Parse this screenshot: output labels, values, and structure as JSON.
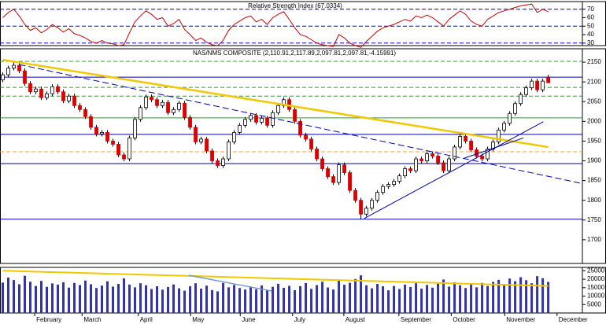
{
  "chart_data": [
    {
      "type": "line",
      "title": "Relative Strength Index (67.0334)",
      "color": "#cc0000",
      "values": [
        60,
        66,
        70,
        62,
        52,
        45,
        48,
        42,
        46,
        52,
        48,
        43,
        47,
        41,
        39,
        36,
        32,
        30,
        33,
        30,
        29,
        27,
        28,
        42,
        55,
        62,
        68,
        64,
        58,
        60,
        50,
        53,
        58,
        46,
        40,
        33,
        36,
        31,
        28,
        27,
        33,
        45,
        52,
        56,
        60,
        62,
        55,
        58,
        52,
        60,
        64,
        67,
        58,
        48,
        40,
        38,
        34,
        30,
        28,
        27,
        26,
        40,
        36,
        30,
        27,
        25,
        32,
        38,
        44,
        48,
        50,
        52,
        55,
        58,
        56,
        62,
        60,
        63,
        60,
        55,
        50,
        58,
        63,
        68,
        64,
        56,
        52,
        50,
        58,
        62,
        66,
        68,
        70,
        72,
        74,
        75,
        76,
        66,
        70,
        67.0334
      ],
      "ylim": [
        27,
        79
      ],
      "yticks": [
        30,
        40,
        50,
        60,
        70
      ],
      "xlim": [
        -0.5,
        105.2
      ],
      "hlines": [
        {
          "value": 70,
          "color": "#0000cc",
          "dash": true
        },
        {
          "value": 50,
          "color": "#0000cc",
          "dash": true
        },
        {
          "value": 30,
          "color": "#0000cc",
          "dash": true
        }
      ]
    },
    {
      "type": "candlestick",
      "title": "NAS/NMS COMPOSITE (2,110.91,2,117.89,2,097.81,2,097.81,-4.15991)",
      "up_color": "#ffffff",
      "down_color": "#dd0000",
      "open": [
        2105,
        2118,
        2135,
        2142,
        2128,
        2096,
        2075,
        2082,
        2060,
        2070,
        2088,
        2075,
        2052,
        2064,
        2040,
        2030,
        2012,
        1985,
        1968,
        1972,
        1950,
        1942,
        1915,
        1905,
        1958,
        2005,
        2035,
        2062,
        2055,
        2040,
        2048,
        2022,
        2030,
        2046,
        2010,
        1985,
        1948,
        1955,
        1925,
        1900,
        1888,
        1905,
        1948,
        1972,
        1990,
        2005,
        2015,
        1998,
        2008,
        1990,
        2022,
        2040,
        2055,
        2030,
        2000,
        1965,
        1955,
        1930,
        1905,
        1880,
        1860,
        1845,
        1890,
        1870,
        1825,
        1800,
        1765,
        1780,
        1800,
        1820,
        1835,
        1840,
        1848,
        1862,
        1880,
        1875,
        1905,
        1900,
        1918,
        1912,
        1895,
        1875,
        1905,
        1935,
        1962,
        1950,
        1928,
        1912,
        1905,
        1930,
        1948,
        1978,
        1995,
        2020,
        2045,
        2068,
        2085,
        2102,
        2080,
        2110.91
      ],
      "high": [
        2124,
        2141,
        2150,
        2148,
        2134,
        2102,
        2088,
        2088,
        2076,
        2094,
        2094,
        2081,
        2070,
        2070,
        2046,
        2036,
        2018,
        1991,
        1978,
        1978,
        1956,
        1948,
        1921,
        1964,
        2011,
        2041,
        2068,
        2068,
        2061,
        2054,
        2054,
        2036,
        2052,
        2052,
        2016,
        1991,
        1961,
        1961,
        1931,
        1906,
        1911,
        1954,
        1978,
        1996,
        2011,
        2021,
        2021,
        2014,
        2014,
        2028,
        2046,
        2061,
        2061,
        2036,
        2006,
        1971,
        1961,
        1936,
        1911,
        1886,
        1866,
        1896,
        1896,
        1876,
        1831,
        1806,
        1786,
        1806,
        1826,
        1841,
        1846,
        1854,
        1868,
        1886,
        1886,
        1911,
        1911,
        1924,
        1924,
        1918,
        1901,
        1911,
        1941,
        1968,
        1968,
        1956,
        1934,
        1918,
        1936,
        1954,
        1984,
        2001,
        2026,
        2051,
        2074,
        2091,
        2108,
        2108,
        2108,
        2117.89
      ],
      "low": [
        2099,
        2112,
        2129,
        2122,
        2090,
        2069,
        2069,
        2054,
        2054,
        2064,
        2069,
        2046,
        2046,
        2034,
        2024,
        2006,
        1979,
        1962,
        1962,
        1944,
        1936,
        1909,
        1899,
        1899,
        1952,
        1999,
        2029,
        2049,
        2034,
        2034,
        2016,
        2016,
        2024,
        2004,
        1979,
        1942,
        1942,
        1919,
        1894,
        1882,
        1882,
        1899,
        1942,
        1966,
        1984,
        1999,
        1992,
        1992,
        1984,
        1984,
        2016,
        2034,
        2024,
        1994,
        1959,
        1949,
        1924,
        1899,
        1874,
        1854,
        1839,
        1839,
        1864,
        1819,
        1794,
        1752,
        1759,
        1774,
        1794,
        1814,
        1829,
        1834,
        1842,
        1856,
        1869,
        1869,
        1894,
        1894,
        1906,
        1889,
        1869,
        1869,
        1899,
        1929,
        1944,
        1922,
        1906,
        1899,
        1899,
        1924,
        1942,
        1972,
        1989,
        2014,
        2039,
        2062,
        2079,
        2074,
        2074,
        2097.81
      ],
      "close": [
        2118,
        2135,
        2142,
        2128,
        2096,
        2075,
        2082,
        2060,
        2070,
        2088,
        2075,
        2052,
        2064,
        2040,
        2030,
        2012,
        1985,
        1968,
        1972,
        1950,
        1942,
        1915,
        1905,
        1958,
        2005,
        2035,
        2062,
        2055,
        2040,
        2048,
        2022,
        2030,
        2046,
        2010,
        1985,
        1948,
        1955,
        1925,
        1900,
        1888,
        1905,
        1948,
        1972,
        1990,
        2005,
        2015,
        1998,
        2008,
        1990,
        2022,
        2040,
        2055,
        2030,
        2000,
        1965,
        1955,
        1930,
        1905,
        1880,
        1860,
        1845,
        1890,
        1870,
        1825,
        1800,
        1765,
        1780,
        1800,
        1820,
        1835,
        1840,
        1848,
        1862,
        1880,
        1875,
        1905,
        1900,
        1918,
        1912,
        1895,
        1875,
        1905,
        1935,
        1962,
        1950,
        1928,
        1912,
        1905,
        1930,
        1948,
        1978,
        1995,
        2020,
        2045,
        2068,
        2085,
        2102,
        2080,
        2102,
        2097.81
      ],
      "ylim": [
        1640,
        2184
      ],
      "yticks": [
        1700,
        1750,
        1800,
        1850,
        1900,
        1950,
        2000,
        2050,
        2100,
        2150
      ],
      "xlim": [
        -0.5,
        105.2
      ],
      "hlines": [
        {
          "value": 2152,
          "color": "#2e9a2e",
          "dash": true
        },
        {
          "value": 2112,
          "color": "#0000aa",
          "dash": false
        },
        {
          "value": 2086,
          "color": "#2e9a2e",
          "dash": true
        },
        {
          "value": 2064,
          "color": "#2e9a2e",
          "dash": true
        },
        {
          "value": 2009,
          "color": "#2e9a2e",
          "dash": false
        },
        {
          "value": 1967,
          "color": "#0000aa",
          "dash": false
        },
        {
          "value": 1923,
          "color": "#f0a040",
          "dash": true
        },
        {
          "value": 1893,
          "color": "#0000aa",
          "dash": false
        },
        {
          "value": 1752,
          "color": "#0000aa",
          "dash": false
        }
      ],
      "trendlines": [
        {
          "x": [
            0,
            99
          ],
          "y": [
            2156,
            1935
          ],
          "color": "#f0c800",
          "width": 2.5,
          "dash": false
        },
        {
          "x": [
            3,
            105
          ],
          "y": [
            2144,
            1843
          ],
          "color": "#0000aa",
          "width": 1,
          "dash": true
        },
        {
          "x": [
            65.6,
            98.1
          ],
          "y": [
            1754,
            1999
          ],
          "color": "#0000aa",
          "width": 1,
          "dash": false
        },
        {
          "x": [
            83.8,
            94.5
          ],
          "y": [
            1907,
            1958
          ],
          "color": "#0000aa",
          "width": 1,
          "dash": false
        }
      ]
    },
    {
      "type": "bar",
      "color": "#3333aa",
      "values": [
        18000,
        21000,
        19500,
        17000,
        22000,
        18500,
        16000,
        19000,
        15500,
        17500,
        16800,
        18200,
        15000,
        17800,
        16500,
        19200,
        17000,
        14800,
        16200,
        18800,
        15600,
        17200,
        20500,
        16800,
        15200,
        17600,
        16400,
        14200,
        15800,
        13800,
        15400,
        16900,
        14600,
        13200,
        15800,
        17600,
        14400,
        16200,
        13600,
        12800,
        17800,
        15200,
        16600,
        14800,
        13900,
        15700,
        14100,
        16300,
        13700,
        15500,
        17300,
        14900,
        16100,
        13500,
        15900,
        17700,
        14300,
        16500,
        18500,
        15100,
        13900,
        19300,
        16700,
        17900,
        20100,
        22300,
        16400,
        14600,
        17200,
        15800,
        13400,
        16000,
        14200,
        16800,
        15400,
        17600,
        14400,
        16600,
        15000,
        17400,
        19800,
        15600,
        18200,
        16400,
        14800,
        17000,
        15200,
        17800,
        16000,
        18400,
        19600,
        17200,
        20400,
        18800,
        21200,
        19400,
        17600,
        21800,
        20600,
        18400
      ],
      "ylim": [
        0,
        27000
      ],
      "yticks": [
        5000,
        10000,
        15000,
        20000,
        25000
      ],
      "xlim": [
        -0.5,
        105.2
      ],
      "xticks": [
        {
          "value": 5.8,
          "label": "February"
        },
        {
          "value": 14.4,
          "label": "March"
        },
        {
          "value": 24.6,
          "label": "April"
        },
        {
          "value": 34.1,
          "label": "May"
        },
        {
          "value": 43.1,
          "label": "June"
        },
        {
          "value": 52.6,
          "label": "July"
        },
        {
          "value": 61.9,
          "label": "August"
        },
        {
          "value": 71.9,
          "label": "September"
        },
        {
          "value": 81.4,
          "label": "October"
        },
        {
          "value": 91.1,
          "label": "November"
        },
        {
          "value": 100.6,
          "label": "December"
        }
      ],
      "trendlines": [
        {
          "x": [
            0,
            99
          ],
          "y": [
            25000,
            16000
          ],
          "color": "#f0c800",
          "width": 2,
          "dash": false
        },
        {
          "x": [
            33.8,
            48.8
          ],
          "y": [
            22300,
            13000
          ],
          "color": "#7799cc",
          "width": 1.5,
          "dash": false
        }
      ]
    }
  ]
}
